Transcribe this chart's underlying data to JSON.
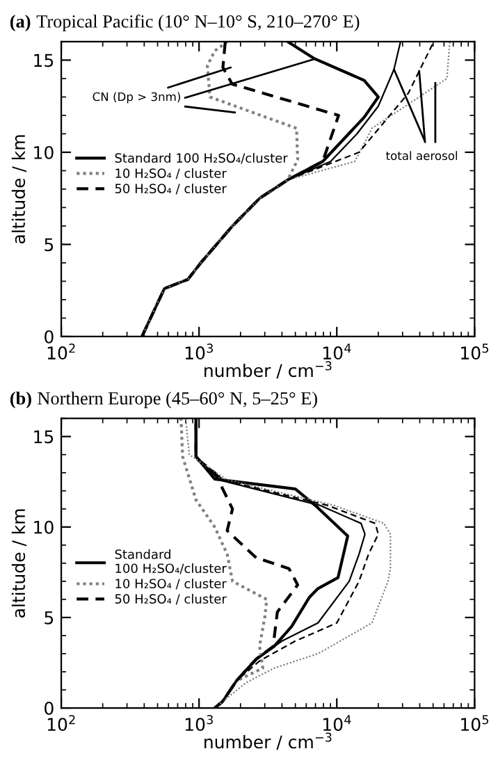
{
  "chart_data": [
    {
      "type": "line",
      "title": "(a) Tropical Pacific (10° N–10° S, 210–270° E)",
      "xlabel": "number / cm$^{−3}$",
      "ylabel": "altitude / km",
      "log": "x",
      "xlim": [
        100,
        100000
      ],
      "ylim": [
        0,
        16
      ],
      "xticks": [
        {
          "value": 100,
          "label": "10$^{2}$"
        },
        {
          "value": 1000,
          "label": "10$^{3}$"
        },
        {
          "value": 10000,
          "label": "10$^{4}$"
        },
        {
          "value": 100000,
          "label": "10$^{5}$"
        }
      ],
      "yticks": [
        0,
        5,
        10,
        15
      ],
      "grid": false,
      "legend": "left",
      "annotations": [
        {
          "text": "CN (Dp > 3nm)",
          "x": 1700,
          "y": 14.6
        },
        {
          "text": "total aerosol",
          "x": 26000,
          "y": 14.5
        }
      ],
      "series": [
        {
          "name": "Standard 100 H₂SO₄/cluster",
          "color": "#000000",
          "line_style": "solid",
          "x": [
            385,
            560,
            830,
            1030,
            1750,
            2750,
            4400,
            7900,
            15800,
            20000,
            15800,
            6800,
            4400
          ],
          "values": [
            0,
            2.6,
            3.1,
            4,
            6,
            7.5,
            8.5,
            9.5,
            11.9,
            13.0,
            13.9,
            15.1,
            16
          ]
        },
        {
          "name": "10 H₂SO₄ / cluster",
          "color": "#808080",
          "line_style": "dotted",
          "x": [
            385,
            560,
            830,
            1030,
            1750,
            2750,
            4400,
            5200,
            5100,
            1200,
            1150,
            1300,
            1600
          ],
          "values": [
            0,
            2.6,
            3.1,
            4,
            6,
            7.5,
            8.5,
            9.6,
            11.3,
            13.0,
            14.7,
            15.5,
            16
          ]
        },
        {
          "name": "50 H₂SO₄ / cluster",
          "color": "#000000",
          "line_style": "dashed",
          "x": [
            385,
            560,
            830,
            1030,
            1750,
            2750,
            4400,
            7900,
            10300,
            1740,
            1490,
            1550
          ],
          "values": [
            0,
            2.6,
            3.1,
            4,
            6,
            7.5,
            8.5,
            9.5,
            12.0,
            13.7,
            14.6,
            16
          ]
        },
        {
          "color": "#000000",
          "line_style": "solid",
          "x": [
            385,
            560,
            830,
            1030,
            1750,
            2750,
            4400,
            9000,
            14000,
            20000,
            26000,
            29000
          ],
          "values": [
            0,
            2.6,
            3.1,
            4,
            6,
            7.5,
            8.5,
            9.5,
            11,
            12.5,
            14.5,
            16
          ]
        },
        {
          "color": "#808080",
          "line_style": "dotted",
          "x": [
            385,
            560,
            830,
            1030,
            1750,
            2750,
            4400,
            13500,
            18000,
            63000,
            66000
          ],
          "values": [
            0,
            2.6,
            3.1,
            4,
            6,
            7.5,
            8.5,
            9.5,
            11.3,
            14,
            16
          ]
        },
        {
          "color": "#000000",
          "line_style": "dashed",
          "x": [
            385,
            560,
            830,
            1030,
            1750,
            2750,
            4400,
            14500,
            33000,
            49000,
            52000
          ],
          "values": [
            0,
            2.6,
            3.1,
            4,
            6,
            7.5,
            8.5,
            10,
            13.2,
            15.8,
            16
          ]
        }
      ]
    },
    {
      "type": "line",
      "title": "(b) Northern Europe (45–60° N, 5–25° E)",
      "xlabel": "number / cm$^{−3}$",
      "ylabel": "altitude / km",
      "log": "x",
      "xlim": [
        100,
        100000
      ],
      "ylim": [
        0,
        16
      ],
      "xticks": [
        {
          "value": 100,
          "label": "10$^{2}$"
        },
        {
          "value": 1000,
          "label": "10$^{3}$"
        },
        {
          "value": 10000,
          "label": "10$^{4}$"
        },
        {
          "value": 100000,
          "label": "10$^{5}$"
        }
      ],
      "yticks": [
        0,
        5,
        10,
        15
      ],
      "grid": false,
      "legend": "left",
      "series": [
        {
          "name": "Standard\n100 H₂SO₄/cluster",
          "color": "#000000",
          "line_style": "solid",
          "x": [
            1300,
            1480,
            1870,
            2600,
            3500,
            4700,
            6300,
            7300,
            10200,
            12000,
            7200,
            5000,
            1300,
            950,
            950
          ],
          "values": [
            0,
            0.35,
            1.5,
            2.7,
            3.4,
            4.5,
            6.1,
            6.6,
            7.2,
            9.5,
            11.1,
            12.1,
            12.65,
            13.9,
            16
          ]
        },
        {
          "name": "10 H₂SO₄ / cluster",
          "color": "#808080",
          "line_style": "dotted",
          "x": [
            1300,
            1480,
            1870,
            2900,
            2750,
            3000,
            3100,
            1750,
            1600,
            1300,
            950,
            760,
            740
          ],
          "values": [
            0,
            0.35,
            1.5,
            2.2,
            3.4,
            5.0,
            6.0,
            7.0,
            8.5,
            10,
            11.5,
            13.9,
            16
          ]
        },
        {
          "name": "50 H₂SO₄ / cluster",
          "color": "#000000",
          "line_style": "dashed",
          "x": [
            1300,
            1480,
            1870,
            2600,
            3450,
            3700,
            5200,
            4500,
            2600,
            1600,
            1750,
            1300,
            950,
            950
          ],
          "values": [
            0,
            0.35,
            1.5,
            2.7,
            3.4,
            5.3,
            6.8,
            7.7,
            8.3,
            9.8,
            11.0,
            13.0,
            13.8,
            16
          ]
        },
        {
          "color": "#000000",
          "line_style": "solid",
          "x": [
            1300,
            1480,
            1870,
            2600,
            4000,
            7300,
            12300,
            14500,
            16000,
            15000,
            7500,
            1400,
            960,
            960
          ],
          "values": [
            0,
            0.35,
            1.5,
            2.7,
            3.7,
            4.7,
            7.0,
            8.5,
            9.6,
            10.2,
            11.2,
            12.6,
            13.9,
            16
          ]
        },
        {
          "color": "#808080",
          "line_style": "dotted",
          "x": [
            1300,
            1480,
            2200,
            3500,
            7300,
            18000,
            23500,
            24500,
            24500,
            22000,
            9500,
            1600,
            850,
            800
          ],
          "values": [
            0,
            0.35,
            1.4,
            2.2,
            3.0,
            4.7,
            7.0,
            7.7,
            9.6,
            10.2,
            11.2,
            12.6,
            14,
            16
          ]
        },
        {
          "color": "#000000",
          "line_style": "dashed",
          "x": [
            1300,
            1480,
            1870,
            2750,
            5000,
            10000,
            14500,
            17000,
            20000,
            19000,
            8500,
            1500,
            940,
            940
          ],
          "values": [
            0,
            0.35,
            1.5,
            2.6,
            3.7,
            4.7,
            7.0,
            8.5,
            9.6,
            10.2,
            11.2,
            12.6,
            13.9,
            16
          ]
        }
      ]
    }
  ]
}
